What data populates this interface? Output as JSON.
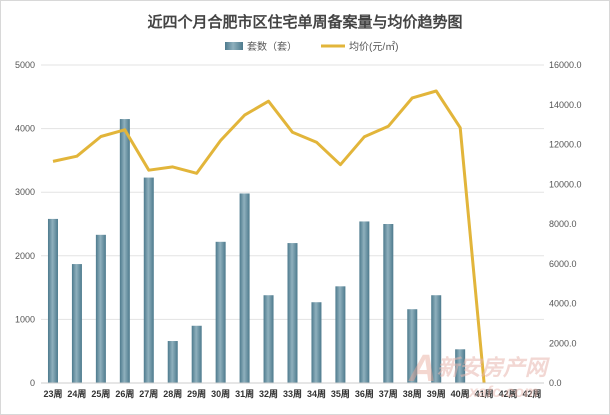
{
  "chart_data": {
    "type": "bar+line",
    "title": "近四个月合肥市区住宅单周备案量与均价趋势图",
    "categories": [
      "23周",
      "24周",
      "25周",
      "26周",
      "27周",
      "28周",
      "29周",
      "30周",
      "31周",
      "32周",
      "33周",
      "34周",
      "35周",
      "36周",
      "37周",
      "38周",
      "39周",
      "40周",
      "41周",
      "42周",
      "42周"
    ],
    "series": [
      {
        "name": "套数（套）",
        "type": "bar",
        "axis": "left",
        "values": [
          2580,
          1870,
          2330,
          4150,
          3230,
          660,
          900,
          2220,
          2980,
          1380,
          2200,
          1270,
          1520,
          2540,
          2500,
          1160,
          1380,
          530,
          null,
          null,
          null
        ]
      },
      {
        "name": "均价(元/㎡)",
        "type": "line",
        "axis": "right",
        "values": [
          11149,
          11413,
          12400,
          12739,
          10707,
          10875,
          10553,
          12202,
          13478,
          14179,
          12612,
          12118,
          10983,
          12390,
          12916,
          14346,
          14692,
          12844,
          0,
          null,
          null
        ]
      }
    ],
    "y_left": {
      "min": 0,
      "max": 5000,
      "ticks": [
        "0",
        "1000",
        "2000",
        "3000",
        "4000",
        "5000"
      ]
    },
    "y_right": {
      "min": 0,
      "max": 16000,
      "ticks": [
        "0.0",
        "2000.0",
        "4000.0",
        "6000.0",
        "8000.0",
        "10000.0",
        "12000.0",
        "14000.0",
        "16000.0"
      ]
    },
    "grid": true,
    "legend_position": "top",
    "colors": {
      "bar": "#5e8a9c",
      "bar_light": "#a9c4cf",
      "line": "#e2b53a",
      "grid": "#e3e3e3"
    }
  },
  "watermark": {
    "brand": "新安房产网",
    "url": "xafc.com",
    "glyph": "A"
  }
}
